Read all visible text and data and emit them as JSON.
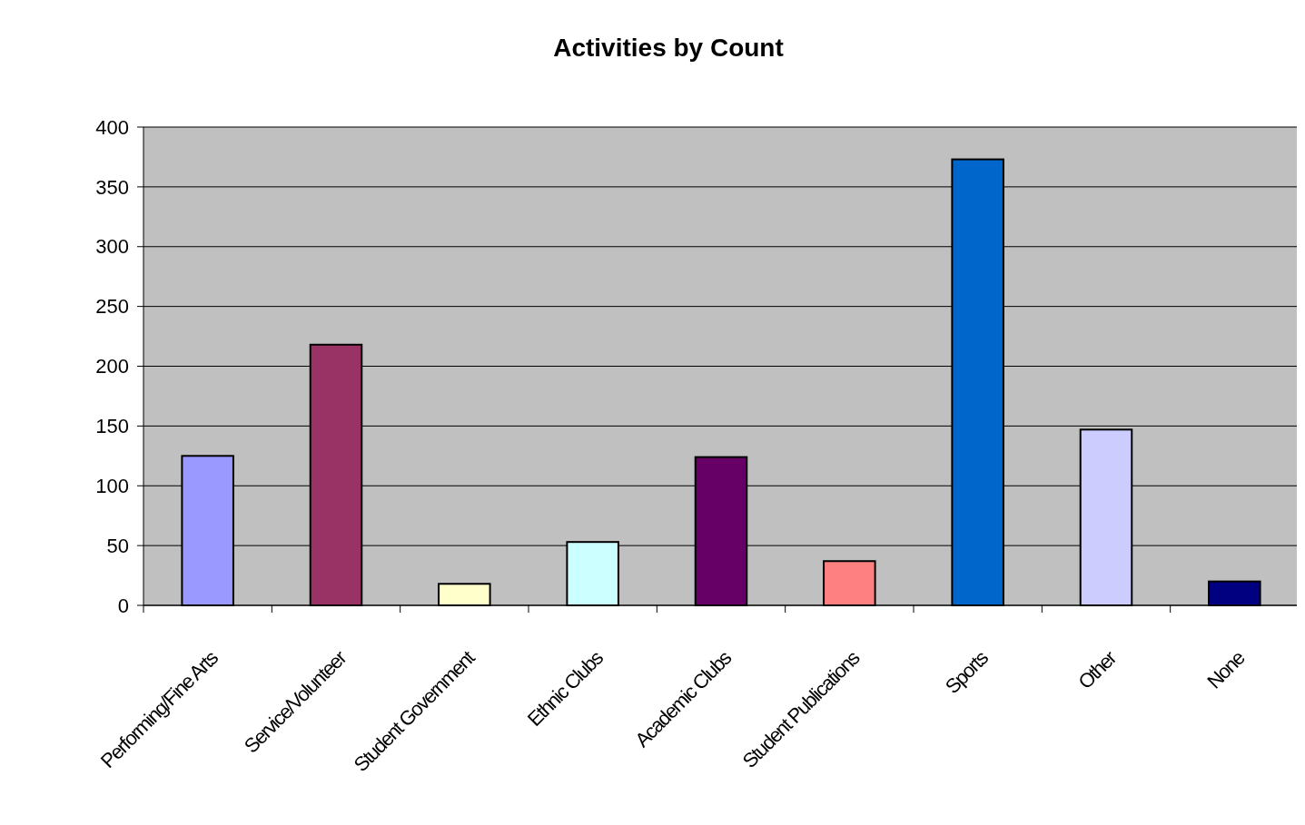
{
  "chart_data": {
    "type": "bar",
    "title": "Activities by Count",
    "categories": [
      "Performing/Fine Arts",
      "Service/Volunteer",
      "Student Government",
      "Ethnic Clubs",
      "Academic Clubs",
      "Student Publications",
      "Sports",
      "Other",
      "None"
    ],
    "values": [
      125,
      218,
      18,
      53,
      124,
      37,
      373,
      147,
      20
    ],
    "colors": [
      "#9999ff",
      "#993366",
      "#ffffcc",
      "#ccffff",
      "#660066",
      "#ff8080",
      "#0066cc",
      "#ccccff",
      "#000080"
    ],
    "ylim": [
      0,
      400
    ],
    "yticks": [
      0,
      50,
      100,
      150,
      200,
      250,
      300,
      350,
      400
    ],
    "grid": "y"
  }
}
